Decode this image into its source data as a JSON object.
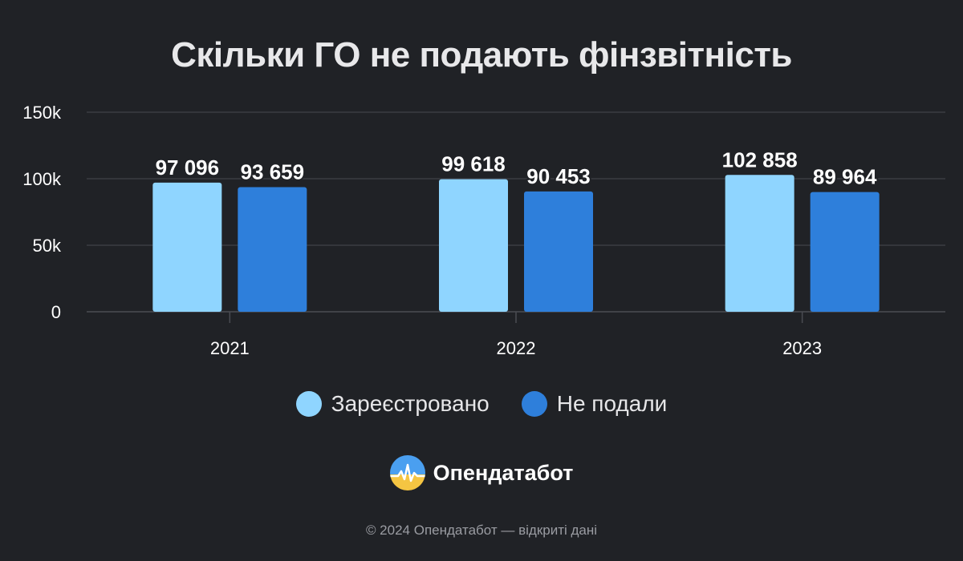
{
  "chart_data": {
    "type": "bar",
    "title": "Скільки ГО не подають фінзвітність",
    "categories": [
      "2021",
      "2022",
      "2023"
    ],
    "series": [
      {
        "name": "Зареєстровано",
        "color": "#8fd5ff",
        "values": [
          97096,
          99618,
          102858
        ],
        "labels": [
          "97 096",
          "99 618",
          "102 858"
        ]
      },
      {
        "name": "Не подали",
        "color": "#2e7fdb",
        "values": [
          93659,
          90453,
          89964
        ],
        "labels": [
          "93 659",
          "90 453",
          "89 964"
        ]
      }
    ],
    "ylim": [
      0,
      150000
    ],
    "yticks": [
      {
        "value": 0,
        "label": "0"
      },
      {
        "value": 50000,
        "label": "50k"
      },
      {
        "value": 100000,
        "label": "100k"
      },
      {
        "value": 150000,
        "label": "150k"
      }
    ],
    "grid": true,
    "legend_position": "bottom"
  },
  "brand": {
    "name": "Опендатабот",
    "logo_icon": "opendatabot-logo-icon"
  },
  "footer": {
    "text": "© 2024 Опендатабот — відкриті дані"
  }
}
